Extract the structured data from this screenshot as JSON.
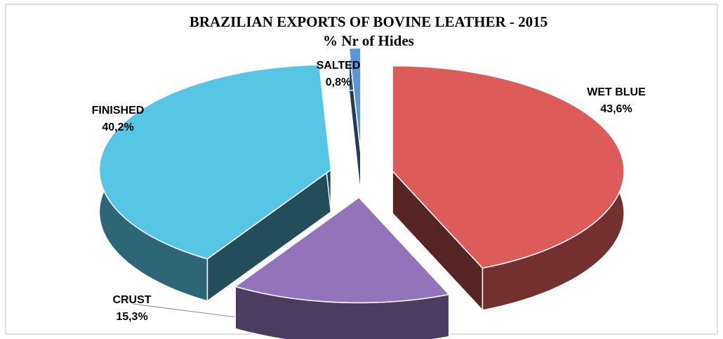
{
  "chart_data": {
    "type": "pie3d",
    "title": "BRAZILIAN EXPORTS OF BOVINE LEATHER -  2015",
    "subtitle": "% Nr of Hides",
    "categories": [
      "WET BLUE",
      "CRUST",
      "FINISHED",
      "SALTED"
    ],
    "values": [
      43.6,
      15.3,
      40.2,
      0.8
    ],
    "value_labels": [
      "43,6%",
      "15,3%",
      "40,2%",
      "0,8%"
    ],
    "colors": [
      "#c0504d",
      "#8064a2",
      "#4bacc6",
      "#4f81bd"
    ]
  }
}
